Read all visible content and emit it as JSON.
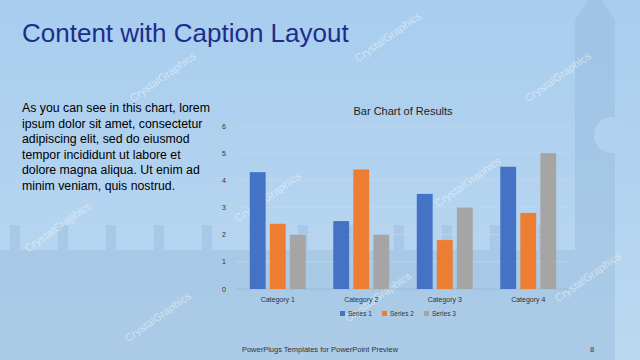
{
  "slide": {
    "title": "Content with Caption Layout",
    "caption": [
      "As you can see in this chart, lorem",
      "ipsum dolor sit amet, consectetur",
      "adipiscing elit, sed do eiusmod",
      "tempor incididunt ut labore et",
      "dolore magna aliqua. Ut enim ad",
      "minim veniam, quis nostrud."
    ],
    "footer": "PowerPlugs Templates for PowerPoint Preview",
    "page_number": "8",
    "watermark": "CrystalGraphics"
  },
  "chart_data": {
    "type": "bar",
    "title": "Bar Chart of Results",
    "categories": [
      "Category 1",
      "Category 2",
      "Category 3",
      "Category 4"
    ],
    "series": [
      {
        "name": "Series 1",
        "color": "#4472c4",
        "values": [
          4.3,
          2.5,
          3.5,
          4.5
        ]
      },
      {
        "name": "Series 2",
        "color": "#ed7d31",
        "values": [
          2.4,
          4.4,
          1.8,
          2.8
        ]
      },
      {
        "name": "Series 3",
        "color": "#a5a5a5",
        "values": [
          2.0,
          2.0,
          3.0,
          5.0
        ]
      }
    ],
    "ylim": [
      0,
      6
    ],
    "yticks": [
      0,
      1,
      2,
      3,
      4,
      5,
      6
    ],
    "grid": true,
    "legend": "bottom"
  }
}
